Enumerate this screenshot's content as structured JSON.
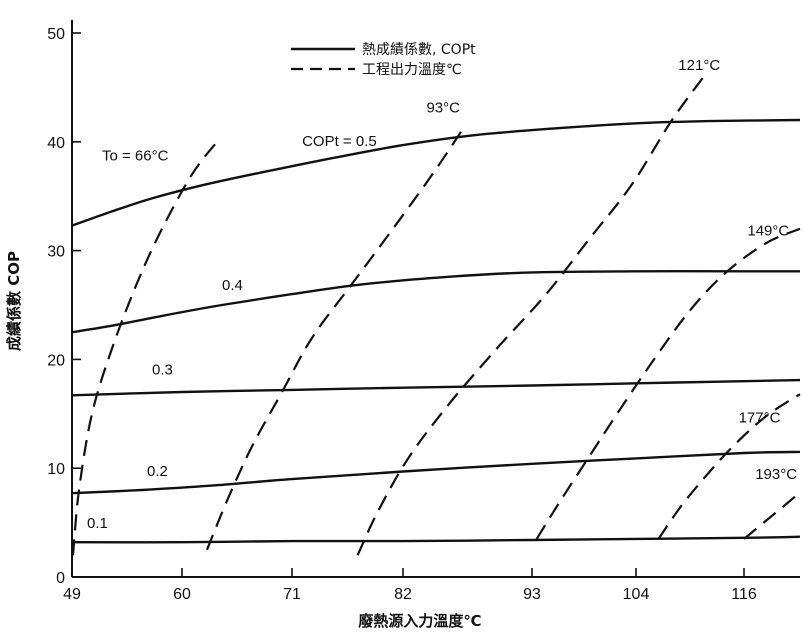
{
  "chart_data": {
    "type": "line",
    "title": "",
    "xlabel": "廢熱源入力溫度℃",
    "ylabel": "成績係數 COP",
    "x_ticks": [
      49,
      60,
      71,
      82,
      93,
      104,
      116
    ],
    "y_ticks": [
      0,
      10,
      20,
      30,
      40,
      50
    ],
    "xlim": [
      49,
      121
    ],
    "ylim": [
      0,
      50
    ],
    "legend": {
      "placement": "top",
      "entries": [
        {
          "name": "熱成績係數, COPt",
          "style": "solid"
        },
        {
          "name": "工程出力溫度℃",
          "style": "dashed"
        }
      ]
    },
    "cop_series": [
      {
        "label": "0.1",
        "x": [
          49,
          60,
          71,
          82,
          93,
          104,
          116,
          121
        ],
        "y": [
          3.2,
          3.2,
          3.3,
          3.3,
          3.4,
          3.5,
          3.6,
          3.7
        ]
      },
      {
        "label": "0.2",
        "x": [
          49,
          56,
          63,
          71,
          82,
          93,
          104,
          116,
          121
        ],
        "y": [
          7.7,
          8.0,
          8.4,
          9.0,
          9.7,
          10.4,
          10.9,
          11.4,
          11.5
        ]
      },
      {
        "label": "0.3",
        "x": [
          49,
          60,
          71,
          82,
          93,
          104,
          116,
          121
        ],
        "y": [
          16.7,
          17.0,
          17.2,
          17.4,
          17.6,
          17.8,
          18.0,
          18.1
        ]
      },
      {
        "label": "0.4",
        "x": [
          49,
          53,
          58,
          64,
          71,
          78,
          86,
          93,
          104,
          116,
          121
        ],
        "y": [
          22.5,
          23.1,
          24.0,
          25.0,
          26.0,
          26.9,
          27.6,
          28.0,
          28.1,
          28.1,
          28.1
        ]
      },
      {
        "label": "COPt = 0.5",
        "x": [
          49,
          53,
          57,
          62,
          68,
          75,
          82,
          88,
          95,
          104,
          112,
          121
        ],
        "y": [
          32.3,
          33.6,
          34.8,
          36.0,
          37.2,
          38.5,
          39.7,
          40.6,
          41.2,
          41.7,
          41.9,
          42.0
        ]
      }
    ],
    "temperature_series": [
      {
        "label": "To = 66°C",
        "x": [
          49.1,
          49.7,
          51,
          53,
          55.5,
          58,
          61,
          63.5
        ],
        "y": [
          2,
          8,
          15,
          21,
          27,
          32,
          37,
          40
        ]
      },
      {
        "label": "93°C",
        "x": [
          62.5,
          64.5,
          67,
          70,
          73,
          77,
          81,
          84.5,
          87
        ],
        "y": [
          2.5,
          7,
          12,
          17,
          22,
          27,
          32,
          37,
          41
        ]
      },
      {
        "label": "121°C",
        "x": [
          77.5,
          79.5,
          82.5,
          86,
          90,
          94.5,
          99,
          103.5,
          108,
          112
        ],
        "y": [
          2,
          6,
          11,
          16,
          21,
          26,
          31,
          36,
          42,
          46.5
        ]
      },
      {
        "label": "149°C",
        "x": [
          93.5,
          96,
          99,
          102,
          106,
          110,
          114,
          118,
          121
        ],
        "y": [
          3.5,
          7,
          11,
          15,
          20,
          24.5,
          28,
          30.7,
          32
        ]
      },
      {
        "label": "177°C",
        "x": [
          106.5,
          109,
          112,
          115,
          118,
          121
        ],
        "y": [
          3.5,
          6.5,
          9.5,
          12.2,
          14.8,
          16.8
        ]
      },
      {
        "label": "193°C",
        "x": [
          116,
          118,
          120,
          121
        ],
        "y": [
          3.5,
          5.2,
          6.9,
          7.8
        ]
      }
    ],
    "curve_labels": [
      {
        "text": "0.1",
        "x": 50.5,
        "y": 4.5
      },
      {
        "text": "0.2",
        "x": 56.5,
        "y": 9.3
      },
      {
        "text": "0.3",
        "x": 57,
        "y": 18.6
      },
      {
        "text": "0.4",
        "x": 64,
        "y": 26.4
      },
      {
        "text": "COPt = 0.5",
        "x": 72,
        "y": 39.6
      },
      {
        "text": "To = 66°C",
        "x": 52,
        "y": 38.3
      },
      {
        "text": "93°C",
        "x": 84,
        "y": 42.7
      },
      {
        "text": "121°C",
        "x": 108.7,
        "y": 46.6
      },
      {
        "text": "149°C",
        "x": 116.3,
        "y": 31.4
      },
      {
        "text": "177°C",
        "x": 115.4,
        "y": 14.2
      },
      {
        "text": "193°C",
        "x": 117,
        "y": 9
      }
    ]
  }
}
